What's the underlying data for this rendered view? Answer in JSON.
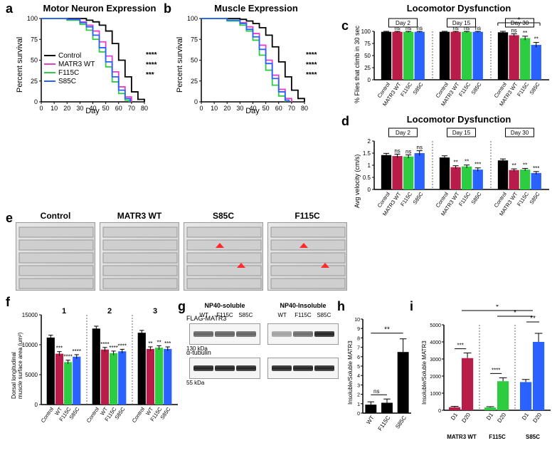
{
  "labels": {
    "a": "a",
    "b": "b",
    "c": "c",
    "d": "d",
    "e": "e",
    "f": "f",
    "g": "g",
    "h": "h",
    "i": "i"
  },
  "survival_a": {
    "title": "Motor Neuron Expression",
    "ylabel": "Percent survival",
    "xlabel": "Day",
    "xlim": [
      0,
      80
    ],
    "ylim": [
      0,
      100
    ],
    "xticks": [
      0,
      10,
      20,
      30,
      40,
      50,
      60,
      70,
      80
    ],
    "yticks": [
      0,
      25,
      50,
      75,
      100
    ],
    "legend": [
      "Control",
      "MATR3 WT",
      "F115C",
      "S85C"
    ],
    "colors": [
      "#000000",
      "#e83ccb",
      "#2ecc40",
      "#2962ff"
    ],
    "series": {
      "Control": [
        [
          0,
          100
        ],
        [
          10,
          100
        ],
        [
          20,
          100
        ],
        [
          30,
          100
        ],
        [
          35,
          98
        ],
        [
          40,
          96
        ],
        [
          45,
          92
        ],
        [
          50,
          85
        ],
        [
          55,
          70
        ],
        [
          60,
          50
        ],
        [
          65,
          30
        ],
        [
          70,
          12
        ],
        [
          75,
          3
        ],
        [
          80,
          0
        ]
      ],
      "MATR3 WT": [
        [
          0,
          100
        ],
        [
          10,
          100
        ],
        [
          20,
          99
        ],
        [
          30,
          96
        ],
        [
          35,
          92
        ],
        [
          40,
          85
        ],
        [
          45,
          72
        ],
        [
          50,
          55
        ],
        [
          55,
          36
        ],
        [
          60,
          18
        ],
        [
          65,
          6
        ],
        [
          70,
          0
        ]
      ],
      "F115C": [
        [
          0,
          100
        ],
        [
          10,
          100
        ],
        [
          20,
          98
        ],
        [
          30,
          93
        ],
        [
          35,
          86
        ],
        [
          40,
          75
        ],
        [
          45,
          60
        ],
        [
          50,
          42
        ],
        [
          55,
          24
        ],
        [
          60,
          10
        ],
        [
          65,
          2
        ],
        [
          68,
          0
        ]
      ],
      "S85C": [
        [
          0,
          100
        ],
        [
          10,
          100
        ],
        [
          20,
          99
        ],
        [
          30,
          95
        ],
        [
          35,
          90
        ],
        [
          40,
          80
        ],
        [
          45,
          65
        ],
        [
          50,
          48
        ],
        [
          55,
          30
        ],
        [
          60,
          14
        ],
        [
          65,
          4
        ],
        [
          69,
          0
        ]
      ]
    },
    "sig": [
      "***",
      "****",
      "****"
    ]
  },
  "survival_b": {
    "title": "Muscle Expression",
    "ylabel": "Percent survival",
    "xlabel": "Day",
    "xlim": [
      0,
      80
    ],
    "ylim": [
      0,
      100
    ],
    "xticks": [
      0,
      10,
      20,
      30,
      40,
      50,
      60,
      70,
      80
    ],
    "yticks": [
      0,
      25,
      50,
      75,
      100
    ],
    "series": {
      "Control": [
        [
          0,
          100
        ],
        [
          10,
          100
        ],
        [
          20,
          100
        ],
        [
          30,
          99
        ],
        [
          35,
          97
        ],
        [
          40,
          94
        ],
        [
          45,
          89
        ],
        [
          50,
          80
        ],
        [
          55,
          66
        ],
        [
          60,
          48
        ],
        [
          65,
          30
        ],
        [
          70,
          14
        ],
        [
          75,
          4
        ],
        [
          80,
          0
        ]
      ],
      "MATR3 WT": [
        [
          0,
          100
        ],
        [
          10,
          100
        ],
        [
          20,
          98
        ],
        [
          30,
          95
        ],
        [
          35,
          90
        ],
        [
          40,
          82
        ],
        [
          45,
          68
        ],
        [
          50,
          50
        ],
        [
          55,
          32
        ],
        [
          60,
          15
        ],
        [
          65,
          4
        ],
        [
          70,
          0
        ]
      ],
      "F115C": [
        [
          0,
          100
        ],
        [
          10,
          100
        ],
        [
          20,
          97
        ],
        [
          30,
          92
        ],
        [
          35,
          85
        ],
        [
          40,
          74
        ],
        [
          45,
          56
        ],
        [
          50,
          38
        ],
        [
          55,
          20
        ],
        [
          60,
          7
        ],
        [
          65,
          0
        ]
      ],
      "S85C": [
        [
          0,
          100
        ],
        [
          10,
          100
        ],
        [
          20,
          98
        ],
        [
          30,
          94
        ],
        [
          35,
          87
        ],
        [
          40,
          78
        ],
        [
          45,
          63
        ],
        [
          50,
          46
        ],
        [
          55,
          28
        ],
        [
          60,
          12
        ],
        [
          65,
          2
        ],
        [
          68,
          0
        ]
      ]
    },
    "sig": [
      "****",
      "****",
      "****"
    ]
  },
  "panel_c": {
    "title": "Locomotor Dysfunction",
    "ylabel": "% Flies that climb in 30 sec",
    "days": [
      "Day 2",
      "Day 15",
      "Day 30"
    ],
    "cats": [
      "Control",
      "MATR3 WT",
      "F115C",
      "S85C"
    ],
    "colors": [
      "#000000",
      "#b81d4a",
      "#2ecc40",
      "#2962ff"
    ],
    "ylim": [
      0,
      100
    ],
    "yticks": [
      0,
      25,
      50,
      75,
      100
    ],
    "values": [
      [
        99,
        99,
        99,
        99
      ],
      [
        99,
        99,
        99,
        99
      ],
      [
        98,
        92,
        86,
        72
      ]
    ],
    "err": [
      [
        1,
        1,
        1,
        1
      ],
      [
        1,
        1,
        1,
        1
      ],
      [
        2,
        3,
        4,
        5
      ]
    ],
    "sig": [
      [
        "",
        "ns",
        "ns",
        "ns"
      ],
      [
        "",
        "ns",
        "ns",
        "ns"
      ],
      [
        "",
        "ns",
        "**",
        "**"
      ]
    ],
    "bracket": "*"
  },
  "panel_d": {
    "title": "Locomotor Dysfunction",
    "ylabel": "Avg velocity (cm/s)",
    "days": [
      "Day 2",
      "Day 15",
      "Day 30"
    ],
    "cats": [
      "Control",
      "MATR3 WT",
      "F115C",
      "S85C"
    ],
    "colors": [
      "#000000",
      "#b81d4a",
      "#2ecc40",
      "#2962ff"
    ],
    "ylim": [
      0,
      2
    ],
    "yticks": [
      0,
      0.5,
      1.0,
      1.5,
      2.0
    ],
    "values": [
      [
        1.42,
        1.38,
        1.36,
        1.5
      ],
      [
        1.32,
        0.92,
        0.95,
        0.82
      ],
      [
        1.2,
        0.8,
        0.82,
        0.68
      ]
    ],
    "err": [
      [
        0.07,
        0.08,
        0.07,
        0.1
      ],
      [
        0.07,
        0.06,
        0.06,
        0.07
      ],
      [
        0.06,
        0.05,
        0.05,
        0.06
      ]
    ],
    "sig": [
      [
        "",
        "ns",
        "ns",
        "ns"
      ],
      [
        "",
        "**",
        "**",
        "***"
      ],
      [
        "",
        "**",
        "**",
        "***"
      ]
    ]
  },
  "panel_e": {
    "labels": [
      "Control",
      "MATR3 WT",
      "S85C",
      "F115C"
    ]
  },
  "panel_f": {
    "ylabel": "Dorsal longitudinal\nmuscle surface area (um²)",
    "groups": [
      "1",
      "2",
      "3"
    ],
    "cats": [
      "Control",
      "WT",
      "F115C",
      "S85C"
    ],
    "colors": [
      "#000000",
      "#b81d4a",
      "#2ecc40",
      "#2962ff"
    ],
    "ylim": [
      0,
      15000
    ],
    "yticks": [
      0,
      5000,
      10000,
      15000
    ],
    "values": [
      [
        11200,
        8500,
        7100,
        8000
      ],
      [
        12700,
        9200,
        8600,
        8900
      ],
      [
        12000,
        9300,
        9500,
        9300
      ]
    ],
    "err": [
      [
        400,
        350,
        320,
        340
      ],
      [
        400,
        350,
        340,
        340
      ],
      [
        400,
        350,
        340,
        340
      ]
    ],
    "sig": [
      [
        "",
        "***",
        "****",
        "****"
      ],
      [
        "",
        "****",
        "****",
        "****"
      ],
      [
        "",
        "**",
        "**",
        "***"
      ]
    ]
  },
  "panel_g": {
    "col_labels": [
      "NP40-soluble",
      "NP40-Insoluble"
    ],
    "lanes": [
      "WT",
      "F115C",
      "S85C"
    ],
    "row_labels": [
      "FLAG-MATR3",
      "α-tubulin"
    ],
    "mw": [
      "130 kDa",
      "55 kDa"
    ]
  },
  "panel_h": {
    "ylabel": "Insoluble/Soluble MATR3",
    "cats": [
      "WT",
      "F115C",
      "S85C"
    ],
    "colors": [
      "#000000",
      "#000000",
      "#000000"
    ],
    "ylim": [
      0,
      10
    ],
    "yticks": [
      0,
      1,
      2,
      3,
      4,
      5,
      6,
      7,
      8,
      9,
      10
    ],
    "values": [
      0.9,
      1.1,
      6.5
    ],
    "err": [
      0.3,
      0.4,
      1.4
    ],
    "sig_ns": "ns",
    "sig_star": "**"
  },
  "panel_i": {
    "ylabel": "Insoluble/Soluble MATR3",
    "groups": [
      "MATR3 WT",
      "F115C",
      "S85C"
    ],
    "cats": [
      "D1",
      "D20"
    ],
    "colors_group": [
      "#b81d4a",
      "#2ecc40",
      "#2962ff"
    ],
    "ylim": [
      0,
      5000
    ],
    "yticks": [
      0,
      1000,
      2000,
      3000,
      4000,
      5000
    ],
    "values": [
      [
        180,
        3050
      ],
      [
        160,
        1700
      ],
      [
        1650,
        4000
      ]
    ],
    "err": [
      [
        50,
        300
      ],
      [
        50,
        200
      ],
      [
        150,
        500
      ]
    ],
    "top_sig": [
      "*",
      "*",
      "**"
    ],
    "inner_sig": [
      "***",
      "****",
      ""
    ]
  }
}
